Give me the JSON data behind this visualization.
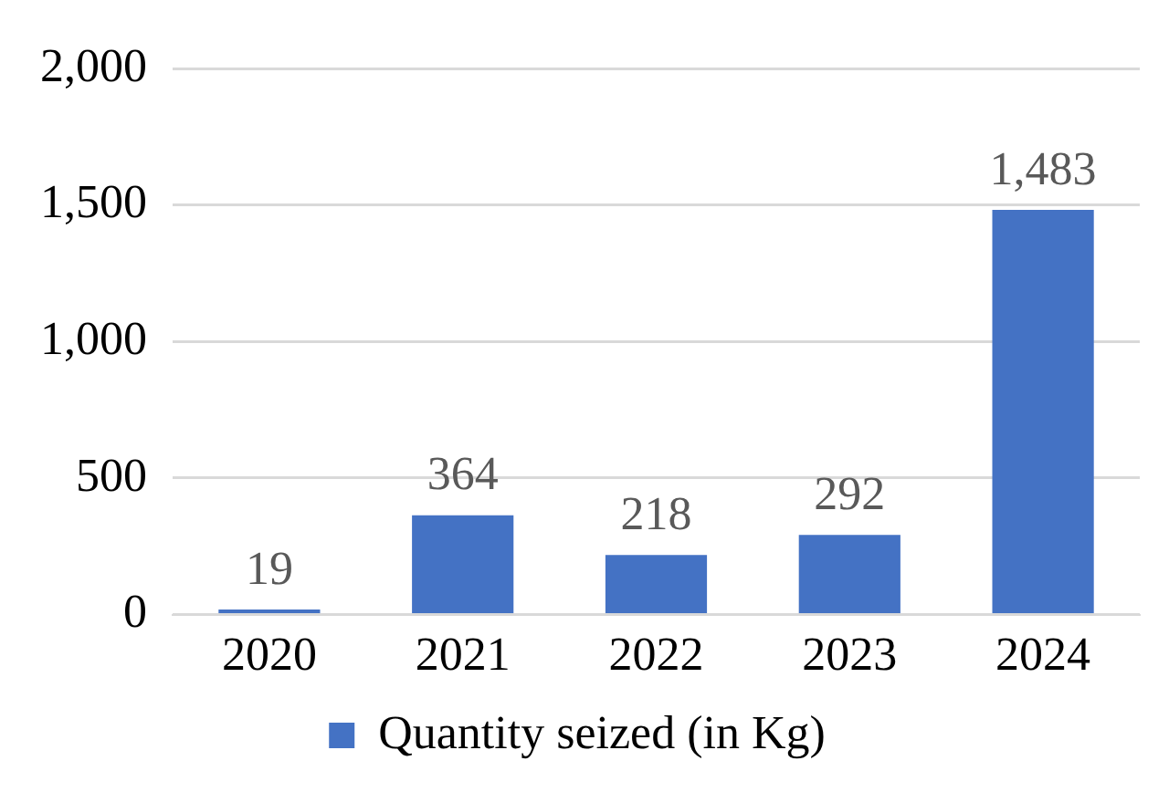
{
  "chart_data": {
    "type": "bar",
    "categories": [
      "2020",
      "2021",
      "2022",
      "2023",
      "2024"
    ],
    "series": [
      {
        "name": "Quantity seized (in Kg)",
        "color": "#4472c4",
        "values": [
          19,
          364,
          218,
          292,
          1483
        ],
        "value_labels": [
          "19",
          "364",
          "218",
          "292",
          "1,483"
        ]
      }
    ],
    "ylim": [
      0,
      2000
    ],
    "yticks": [
      0,
      500,
      {
        "value": 1000,
        "label": "1,000"
      },
      {
        "value": 1500,
        "label": "1,500"
      },
      {
        "value": 2000,
        "label": "2,000"
      }
    ],
    "grid": "y",
    "legend": "bottom"
  }
}
